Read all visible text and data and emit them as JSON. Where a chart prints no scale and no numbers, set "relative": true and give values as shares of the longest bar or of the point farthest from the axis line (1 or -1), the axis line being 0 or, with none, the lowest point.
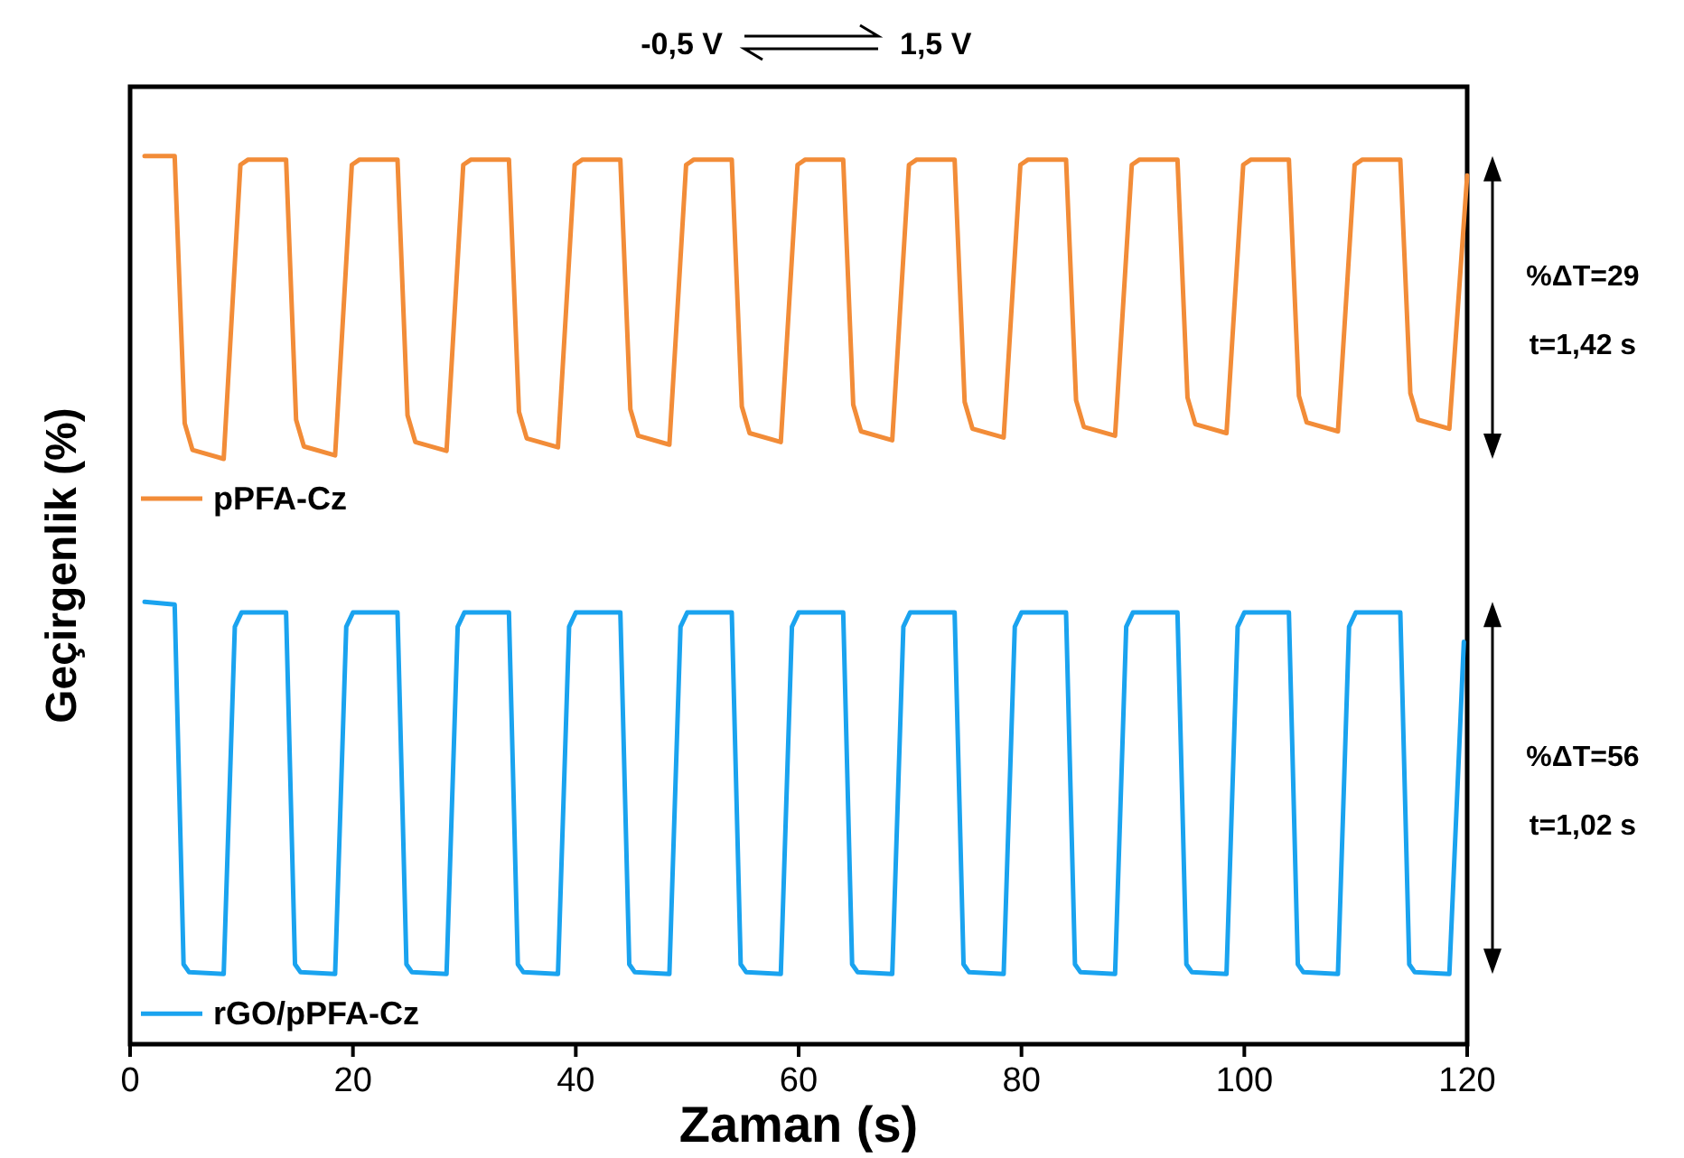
{
  "chart_data": {
    "type": "line",
    "relative": true,
    "xlabel": "Zaman (s)",
    "ylabel": "Geçirgenlik (%)",
    "xlim": [
      0,
      120
    ],
    "xticks": [
      0,
      20,
      40,
      60,
      80,
      100,
      120
    ],
    "grid": false,
    "legend": "left",
    "line_style": "solid",
    "annotations": [
      "-0,5 V",
      "1,5 V",
      "%ΔT=29",
      "t=1,42 s",
      "%ΔT=56",
      "t=1,02 s"
    ],
    "series": [
      {
        "name": "pPFA-Cz",
        "color": "#f28c38",
        "x": [
          1.3,
          4.0,
          4.9,
          5.6,
          8.4,
          9.9,
          10.6,
          14,
          14.9,
          15.6,
          18.4,
          19.9,
          20.6,
          24,
          24.9,
          25.6,
          28.4,
          29.9,
          30.6,
          34,
          34.9,
          35.6,
          38.4,
          39.9,
          40.6,
          44,
          44.9,
          45.6,
          48.4,
          49.9,
          50.6,
          54,
          54.9,
          55.6,
          58.4,
          59.9,
          60.6,
          64,
          64.9,
          65.6,
          68.4,
          69.9,
          70.6,
          74,
          74.9,
          75.6,
          78.4,
          79.9,
          80.6,
          84,
          84.9,
          85.6,
          88.4,
          89.9,
          90.6,
          94,
          94.9,
          95.6,
          98.4,
          99.9,
          100.6,
          104,
          104.9,
          105.6,
          108.4,
          109.9,
          110.6,
          114,
          114.9,
          115.6,
          118.4,
          120
        ],
        "values": [
          1.0,
          1.0,
          0.699,
          0.669,
          0.659,
          0.99,
          0.996,
          0.996,
          0.703,
          0.673,
          0.663,
          0.99,
          0.996,
          0.996,
          0.708,
          0.678,
          0.668,
          0.99,
          0.996,
          0.996,
          0.712,
          0.682,
          0.672,
          0.99,
          0.996,
          0.996,
          0.715,
          0.685,
          0.675,
          0.99,
          0.996,
          0.996,
          0.718,
          0.688,
          0.678,
          0.99,
          0.996,
          0.996,
          0.72,
          0.69,
          0.68,
          0.99,
          0.996,
          0.996,
          0.723,
          0.693,
          0.683,
          0.99,
          0.996,
          0.996,
          0.725,
          0.695,
          0.685,
          0.99,
          0.996,
          0.996,
          0.728,
          0.698,
          0.688,
          0.99,
          0.996,
          0.996,
          0.73,
          0.7,
          0.69,
          0.99,
          0.996,
          0.996,
          0.733,
          0.703,
          0.693,
          0.978
        ]
      },
      {
        "name": "rGO/pPFA-Cz",
        "color": "#1aa3ef",
        "x": [
          1.3,
          4.0,
          4.8,
          5.3,
          8.4,
          9.4,
          10.0,
          14,
          14.8,
          15.3,
          18.4,
          19.4,
          20.0,
          24,
          24.8,
          25.3,
          28.4,
          29.4,
          30.0,
          34,
          34.8,
          35.3,
          38.4,
          39.4,
          40.0,
          44,
          44.8,
          45.3,
          48.4,
          49.4,
          50.0,
          54,
          54.8,
          55.3,
          58.4,
          59.4,
          60.0,
          64,
          64.8,
          65.3,
          68.4,
          69.4,
          70.0,
          74,
          74.8,
          75.3,
          78.4,
          79.4,
          80.0,
          84,
          84.8,
          85.3,
          88.4,
          89.4,
          90.0,
          94,
          94.8,
          95.3,
          98.4,
          99.4,
          100.0,
          104,
          104.8,
          105.3,
          108.4,
          109.4,
          110.0,
          114,
          114.8,
          115.3,
          118.4,
          119.7
        ],
        "values": [
          0.498,
          0.495,
          0.09,
          0.081,
          0.079,
          0.47,
          0.486,
          0.486,
          0.09,
          0.081,
          0.079,
          0.47,
          0.486,
          0.486,
          0.09,
          0.081,
          0.079,
          0.47,
          0.486,
          0.486,
          0.09,
          0.081,
          0.079,
          0.47,
          0.486,
          0.486,
          0.09,
          0.081,
          0.079,
          0.47,
          0.486,
          0.486,
          0.09,
          0.081,
          0.079,
          0.47,
          0.486,
          0.486,
          0.09,
          0.081,
          0.079,
          0.47,
          0.486,
          0.486,
          0.09,
          0.081,
          0.079,
          0.47,
          0.486,
          0.486,
          0.09,
          0.081,
          0.079,
          0.47,
          0.486,
          0.486,
          0.09,
          0.081,
          0.079,
          0.47,
          0.486,
          0.486,
          0.09,
          0.081,
          0.079,
          0.47,
          0.486,
          0.486,
          0.09,
          0.081,
          0.079,
          0.453
        ]
      }
    ]
  }
}
